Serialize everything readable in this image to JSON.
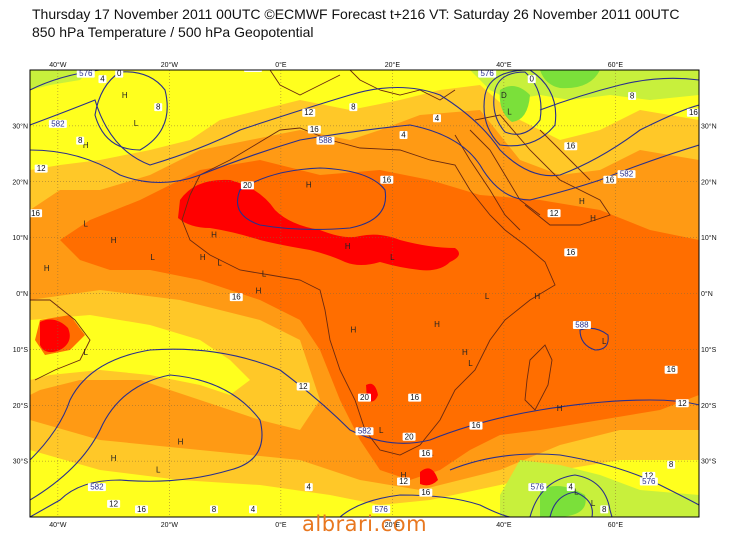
{
  "header": {
    "line1": "Thursday 17 November 2011 00UTC ©ECMWF Forecast t+216 VT: Saturday 26 November 2011 00UTC",
    "line2": "850 hPa Temperature / 500 hPa Geopotential"
  },
  "map": {
    "lon_labels": [
      "40°W",
      "20°W",
      "0°E",
      "20°E",
      "40°E",
      "60°E"
    ],
    "lat_labels": [
      "30°N",
      "20°N",
      "10°N",
      "0°N",
      "10°S",
      "20°S",
      "30°S"
    ],
    "colors": {
      "cold_green": "#7be03a",
      "cool_green": "#c8f03c",
      "yellow": "#ffff1e",
      "light_orange": "#ffc828",
      "orange": "#ff9a14",
      "dark_orange": "#ff6e00",
      "red": "#ff0000",
      "contour": "#2a2f8c",
      "coast": "#6b2a10"
    },
    "pressure_symbols": [
      {
        "text": "H",
        "lon": -35,
        "lat": 26
      },
      {
        "text": "L",
        "lon": -26,
        "lat": 30
      },
      {
        "text": "H",
        "lon": -28,
        "lat": 35
      },
      {
        "text": "L",
        "lon": -35,
        "lat": 12
      },
      {
        "text": "H",
        "lon": -42,
        "lat": 4
      },
      {
        "text": "H",
        "lon": -30,
        "lat": 9
      },
      {
        "text": "L",
        "lon": -23,
        "lat": 6
      },
      {
        "text": "H",
        "lon": -14,
        "lat": 6
      },
      {
        "text": "H",
        "lon": -12,
        "lat": 10
      },
      {
        "text": "L",
        "lon": -11,
        "lat": 5
      },
      {
        "text": "H",
        "lon": -4,
        "lat": 0
      },
      {
        "text": "L",
        "lon": -3,
        "lat": 3
      },
      {
        "text": "H",
        "lon": 5,
        "lat": 19
      },
      {
        "text": "H",
        "lon": 12,
        "lat": 8
      },
      {
        "text": "L",
        "lon": 20,
        "lat": 6
      },
      {
        "text": "H",
        "lon": 13,
        "lat": -7
      },
      {
        "text": "H",
        "lon": 28,
        "lat": -6
      },
      {
        "text": "H",
        "lon": 33,
        "lat": -11
      },
      {
        "text": "L",
        "lon": 37,
        "lat": -1
      },
      {
        "text": "H",
        "lon": 46,
        "lat": -1
      },
      {
        "text": "H",
        "lon": 54,
        "lat": 16
      },
      {
        "text": "H",
        "lon": 56,
        "lat": 13
      },
      {
        "text": "L",
        "lon": 58,
        "lat": -9
      },
      {
        "text": "H",
        "lon": -18,
        "lat": -27
      },
      {
        "text": "L",
        "lon": -22,
        "lat": -32
      },
      {
        "text": "H",
        "lon": -30,
        "lat": -30
      },
      {
        "text": "L",
        "lon": -35,
        "lat": -11
      },
      {
        "text": "H",
        "lon": 22,
        "lat": -33
      },
      {
        "text": "L",
        "lon": 27,
        "lat": -29
      },
      {
        "text": "L",
        "lon": 18,
        "lat": -25
      },
      {
        "text": "D",
        "lon": 40,
        "lat": 35
      },
      {
        "text": "L",
        "lon": 41,
        "lat": 32
      },
      {
        "text": "L",
        "lon": 53,
        "lat": -36
      },
      {
        "text": "L",
        "lon": 56,
        "lat": -38
      },
      {
        "text": "H",
        "lon": 50,
        "lat": -21
      },
      {
        "text": "L",
        "lon": 34,
        "lat": -13
      }
    ],
    "contour_labels": [
      {
        "text": "12",
        "lon": -43,
        "lat": 22
      },
      {
        "text": "8",
        "lon": -36,
        "lat": 27
      },
      {
        "text": "4",
        "lon": -32,
        "lat": 38
      },
      {
        "text": "0",
        "lon": -29,
        "lat": 39
      },
      {
        "text": "8",
        "lon": -22,
        "lat": 33
      },
      {
        "text": "582",
        "lon": -40,
        "lat": 30
      },
      {
        "text": "576",
        "lon": -35,
        "lat": 39
      },
      {
        "text": "16",
        "lon": -44,
        "lat": 14
      },
      {
        "text": "576",
        "lon": -5,
        "lat": 40
      },
      {
        "text": "12",
        "lon": 5,
        "lat": 32
      },
      {
        "text": "16",
        "lon": 6,
        "lat": 29
      },
      {
        "text": "588",
        "lon": 8,
        "lat": 27
      },
      {
        "text": "8",
        "lon": 13,
        "lat": 33
      },
      {
        "text": "4",
        "lon": 22,
        "lat": 28
      },
      {
        "text": "4",
        "lon": 28,
        "lat": 31
      },
      {
        "text": "16",
        "lon": 19,
        "lat": 20
      },
      {
        "text": "20",
        "lon": -6,
        "lat": 19
      },
      {
        "text": "576",
        "lon": 37,
        "lat": 39
      },
      {
        "text": "0",
        "lon": 45,
        "lat": 38
      },
      {
        "text": "8",
        "lon": 63,
        "lat": 35
      },
      {
        "text": "16",
        "lon": 74,
        "lat": 32
      },
      {
        "text": "16",
        "lon": 52,
        "lat": 26
      },
      {
        "text": "16",
        "lon": 59,
        "lat": 20
      },
      {
        "text": "582",
        "lon": 62,
        "lat": 21
      },
      {
        "text": "12",
        "lon": 49,
        "lat": 14
      },
      {
        "text": "16",
        "lon": 52,
        "lat": 7
      },
      {
        "text": "16",
        "lon": -8,
        "lat": -1
      },
      {
        "text": "588",
        "lon": 54,
        "lat": -6
      },
      {
        "text": "12",
        "lon": 4,
        "lat": -17
      },
      {
        "text": "20",
        "lon": 15,
        "lat": -19
      },
      {
        "text": "16",
        "lon": 24,
        "lat": -19
      },
      {
        "text": "20",
        "lon": 23,
        "lat": -26
      },
      {
        "text": "582",
        "lon": 15,
        "lat": -25
      },
      {
        "text": "16",
        "lon": 26,
        "lat": -29
      },
      {
        "text": "16",
        "lon": 35,
        "lat": -24
      },
      {
        "text": "16",
        "lon": 70,
        "lat": -14
      },
      {
        "text": "12",
        "lon": 72,
        "lat": -20
      },
      {
        "text": "8",
        "lon": 70,
        "lat": -31
      },
      {
        "text": "12",
        "lon": 66,
        "lat": -33
      },
      {
        "text": "576",
        "lon": 66,
        "lat": -34
      },
      {
        "text": "576",
        "lon": 46,
        "lat": -35
      },
      {
        "text": "4",
        "lon": 52,
        "lat": -35
      },
      {
        "text": "8",
        "lon": 58,
        "lat": -39
      },
      {
        "text": "582",
        "lon": -33,
        "lat": -35
      },
      {
        "text": "12",
        "lon": -30,
        "lat": -38
      },
      {
        "text": "4",
        "lon": 5,
        "lat": -35
      },
      {
        "text": "12",
        "lon": 22,
        "lat": -34
      },
      {
        "text": "16",
        "lon": 26,
        "lat": -36
      },
      {
        "text": "576",
        "lon": 18,
        "lat": -39
      },
      {
        "text": "16",
        "lon": -48,
        "lat": -7
      },
      {
        "text": "8",
        "lon": -12,
        "lat": -39
      },
      {
        "text": "4",
        "lon": -5,
        "lat": -39
      },
      {
        "text": "16",
        "lon": -25,
        "lat": -39
      }
    ]
  },
  "watermark": "albrari.com"
}
